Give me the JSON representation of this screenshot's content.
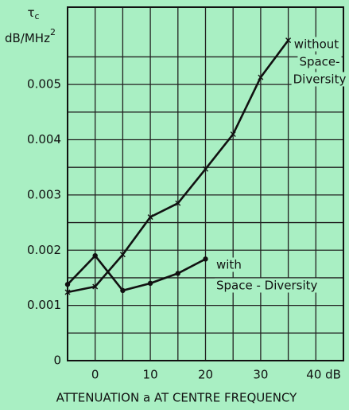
{
  "chart_data": {
    "type": "line",
    "y_symbol": "τ",
    "y_symbol_sub": "c",
    "y_unit": "dB/MHz",
    "y_unit_sup": "2",
    "x_label": "ATTENUATION a AT CENTRE FREQUENCY",
    "xlim": [
      -5,
      45
    ],
    "xticks": [
      0,
      10,
      20,
      30,
      {
        "value": 40,
        "label": "40 dB"
      }
    ],
    "x_minor_ticks": [
      5,
      15,
      25,
      35
    ],
    "ylim": [
      0,
      0.0064
    ],
    "yticks": [
      0,
      0.001,
      0.002,
      0.003,
      0.004,
      0.005
    ],
    "y_minor_ticks": [
      0.0005,
      0.0015,
      0.0025,
      0.0035,
      0.0045,
      0.0055
    ],
    "grid": true,
    "series": [
      {
        "name": [
          "without",
          "Space-",
          "Diversity"
        ],
        "color": "#111111",
        "marker": "x",
        "x": [
          -5,
          0,
          5,
          10,
          15,
          20,
          25,
          30,
          35
        ],
        "values": [
          0.00124,
          0.00134,
          0.00192,
          0.0026,
          0.00285,
          0.00347,
          0.0041,
          0.00513,
          0.0058
        ]
      },
      {
        "name": [
          "with",
          "Space - Diversity"
        ],
        "color": "#111111",
        "marker": "dot",
        "x": [
          -5,
          0,
          5,
          10,
          15,
          20
        ],
        "values": [
          0.00138,
          0.0019,
          0.00127,
          0.0014,
          0.00158,
          0.00184
        ]
      }
    ]
  }
}
